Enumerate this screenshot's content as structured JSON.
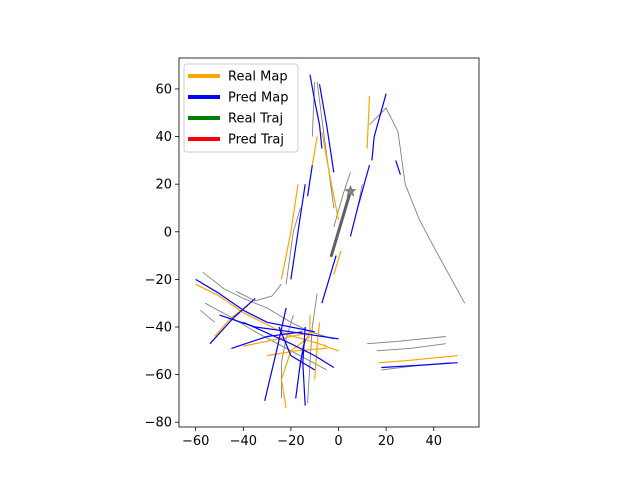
{
  "chart_data": {
    "type": "line",
    "title": "",
    "xlabel": "",
    "ylabel": "",
    "xlim": [
      -67,
      59
    ],
    "ylim": [
      -82,
      73
    ],
    "xticks": [
      -60,
      -40,
      -20,
      0,
      20,
      40
    ],
    "yticks": [
      -80,
      -60,
      -40,
      -20,
      0,
      20,
      40,
      60
    ],
    "xtick_labels": [
      "−60",
      "−40",
      "−20",
      "0",
      "20",
      "40"
    ],
    "ytick_labels": [
      "−80",
      "−60",
      "−40",
      "−20",
      "0",
      "20",
      "40",
      "60"
    ],
    "grid": false,
    "legend": {
      "position": "top-left",
      "entries": [
        {
          "label": "Real Map",
          "color": "#ffa500"
        },
        {
          "label": "Pred Map",
          "color": "#0000ff"
        },
        {
          "label": "Real Traj",
          "color": "#008000"
        },
        {
          "label": "Pred Traj",
          "color": "#ff0000"
        }
      ]
    },
    "series": [
      {
        "color": "#808080",
        "kind": "context",
        "points": [
          [
            13,
            45
          ],
          [
            20,
            52
          ],
          [
            25,
            42
          ],
          [
            28,
            20
          ],
          [
            34,
            5
          ],
          [
            42,
            -10
          ],
          [
            53,
            -30
          ]
        ]
      },
      {
        "color": "#808080",
        "kind": "context",
        "points": [
          [
            12,
            -47
          ],
          [
            25,
            -46
          ],
          [
            45,
            -44
          ]
        ]
      },
      {
        "color": "#808080",
        "kind": "context",
        "points": [
          [
            16,
            -50
          ],
          [
            30,
            -49
          ],
          [
            45,
            -47
          ]
        ]
      },
      {
        "color": "#808080",
        "kind": "context",
        "points": [
          [
            18,
            -58
          ],
          [
            35,
            -56
          ],
          [
            47,
            -55
          ]
        ]
      },
      {
        "color": "#808080",
        "kind": "context",
        "points": [
          [
            -57,
            -17
          ],
          [
            -48,
            -24
          ],
          [
            -40,
            -28
          ],
          [
            -30,
            -32
          ],
          [
            -20,
            -38
          ],
          [
            -12,
            -42
          ],
          [
            -2,
            -45
          ]
        ]
      },
      {
        "color": "#808080",
        "kind": "context",
        "points": [
          [
            -58,
            -33
          ],
          [
            -52,
            -38
          ]
        ]
      },
      {
        "color": "#808080",
        "kind": "context",
        "points": [
          [
            -56,
            -30
          ],
          [
            -45,
            -36
          ],
          [
            -35,
            -42
          ],
          [
            -20,
            -50
          ],
          [
            -5,
            -58
          ]
        ]
      },
      {
        "color": "#808080",
        "kind": "context",
        "points": [
          [
            -43,
            -25
          ],
          [
            -35,
            -29
          ],
          [
            -28,
            -27
          ],
          [
            -24,
            -22
          ]
        ]
      },
      {
        "color": "#808080",
        "kind": "context",
        "points": [
          [
            -19,
            -35
          ],
          [
            -22,
            -45
          ],
          [
            -24,
            -55
          ],
          [
            -24,
            -70
          ]
        ]
      },
      {
        "color": "#808080",
        "kind": "context",
        "points": [
          [
            -9,
            -26
          ],
          [
            -11,
            -40
          ],
          [
            -12,
            -55
          ],
          [
            -13,
            -72
          ]
        ]
      },
      {
        "color": "#808080",
        "kind": "context",
        "points": [
          [
            -22,
            -22
          ],
          [
            -19,
            0
          ],
          [
            -16,
            10
          ]
        ]
      },
      {
        "color": "#808080",
        "kind": "context",
        "points": [
          [
            -9,
            63
          ],
          [
            -6,
            40
          ],
          [
            -4,
            25
          ],
          [
            -2,
            10
          ]
        ]
      },
      {
        "color": "#808080",
        "kind": "context",
        "points": [
          [
            -2,
            2
          ],
          [
            2,
            16
          ],
          [
            5,
            25
          ]
        ]
      },
      {
        "color": "#808080",
        "kind": "context",
        "points": [
          [
            10,
            20
          ],
          [
            8,
            10
          ]
        ]
      },
      {
        "color": "#808080",
        "kind": "context",
        "points": [
          [
            -10,
            63
          ],
          [
            -11,
            40
          ]
        ]
      },
      {
        "color": "#ffa500",
        "kind": "real-map",
        "points": [
          [
            -60,
            -22
          ],
          [
            -50,
            -27
          ],
          [
            -40,
            -34
          ],
          [
            -30,
            -39
          ],
          [
            -22,
            -43
          ],
          [
            -15,
            -45
          ],
          [
            -5,
            -48
          ]
        ]
      },
      {
        "color": "#ffa500",
        "kind": "real-map",
        "points": [
          [
            -52,
            -44
          ],
          [
            -45,
            -36
          ],
          [
            -38,
            -31
          ]
        ]
      },
      {
        "color": "#ffa500",
        "kind": "real-map",
        "points": [
          [
            -40,
            -48
          ],
          [
            -25,
            -45
          ],
          [
            -10,
            -42
          ]
        ]
      },
      {
        "color": "#ffa500",
        "kind": "real-map",
        "points": [
          [
            -30,
            -52
          ],
          [
            -18,
            -50
          ],
          [
            -5,
            -49
          ]
        ]
      },
      {
        "color": "#ffa500",
        "kind": "real-map",
        "points": [
          [
            -22,
            -74
          ],
          [
            -24,
            -62
          ],
          [
            -20,
            -50
          ],
          [
            -12,
            -44
          ]
        ]
      },
      {
        "color": "#ffa500",
        "kind": "real-map",
        "points": [
          [
            -16,
            -57
          ],
          [
            -15,
            -48
          ],
          [
            -12,
            -42
          ],
          [
            -12,
            -35
          ]
        ]
      },
      {
        "color": "#ffa500",
        "kind": "real-map",
        "points": [
          [
            -10,
            -62
          ],
          [
            -9,
            -48
          ],
          [
            -8,
            -38
          ]
        ]
      },
      {
        "color": "#ffa500",
        "kind": "real-map",
        "points": [
          [
            -6,
            -48
          ],
          [
            0,
            -50
          ]
        ]
      },
      {
        "color": "#ffa500",
        "kind": "real-map",
        "points": [
          [
            -24,
            -20
          ],
          [
            -20,
            0
          ],
          [
            -17,
            20
          ]
        ]
      },
      {
        "color": "#ffa500",
        "kind": "real-map",
        "points": [
          [
            -7,
            42
          ],
          [
            -3,
            20
          ],
          [
            0,
            5
          ]
        ]
      },
      {
        "color": "#ffa500",
        "kind": "real-map",
        "points": [
          [
            -9,
            40
          ],
          [
            -11,
            28
          ]
        ]
      },
      {
        "color": "#ffa500",
        "kind": "real-map",
        "points": [
          [
            13,
            57
          ],
          [
            12,
            35
          ]
        ]
      },
      {
        "color": "#ffa500",
        "kind": "real-map",
        "points": [
          [
            1,
            -8
          ],
          [
            -2,
            -18
          ]
        ]
      },
      {
        "color": "#ffa500",
        "kind": "real-map",
        "points": [
          [
            17,
            -55
          ],
          [
            30,
            -54
          ],
          [
            50,
            -52
          ]
        ]
      },
      {
        "color": "#0000ff",
        "kind": "pred-map",
        "points": [
          [
            -12,
            66
          ],
          [
            -10,
            55
          ],
          [
            -8,
            45
          ],
          [
            -7,
            35
          ]
        ]
      },
      {
        "color": "#0000ff",
        "kind": "pred-map",
        "points": [
          [
            -8,
            62
          ],
          [
            -5,
            45
          ],
          [
            -2,
            25
          ]
        ]
      },
      {
        "color": "#0000ff",
        "kind": "pred-map",
        "points": [
          [
            -14,
            20
          ],
          [
            -17,
            0
          ],
          [
            -20,
            -20
          ]
        ]
      },
      {
        "color": "#0000ff",
        "kind": "pred-map",
        "points": [
          [
            -11,
            28
          ],
          [
            -13,
            15
          ]
        ]
      },
      {
        "color": "#0000ff",
        "kind": "pred-map",
        "points": [
          [
            20,
            58
          ],
          [
            15,
            40
          ],
          [
            14,
            30
          ]
        ]
      },
      {
        "color": "#0000ff",
        "kind": "pred-map",
        "points": [
          [
            13,
            28
          ],
          [
            8,
            10
          ],
          [
            5,
            -2
          ]
        ]
      },
      {
        "color": "#0000ff",
        "kind": "pred-map",
        "points": [
          [
            24,
            30
          ],
          [
            26,
            24
          ]
        ]
      },
      {
        "color": "#0000ff",
        "kind": "pred-map",
        "points": [
          [
            -1,
            -10
          ],
          [
            -4,
            -20
          ],
          [
            -7,
            -30
          ]
        ]
      },
      {
        "color": "#0000ff",
        "kind": "pred-map",
        "points": [
          [
            -60,
            -20
          ],
          [
            -50,
            -26
          ],
          [
            -40,
            -33
          ],
          [
            -30,
            -38
          ],
          [
            -20,
            -40
          ],
          [
            -10,
            -42
          ]
        ]
      },
      {
        "color": "#0000ff",
        "kind": "pred-map",
        "points": [
          [
            -54,
            -47
          ],
          [
            -44,
            -36
          ],
          [
            -35,
            -28
          ]
        ]
      },
      {
        "color": "#0000ff",
        "kind": "pred-map",
        "points": [
          [
            -50,
            -35
          ],
          [
            -35,
            -40
          ],
          [
            -20,
            -42
          ],
          [
            0,
            -45
          ]
        ]
      },
      {
        "color": "#0000ff",
        "kind": "pred-map",
        "points": [
          [
            -45,
            -49
          ],
          [
            -30,
            -44
          ],
          [
            -15,
            -42
          ]
        ]
      },
      {
        "color": "#0000ff",
        "kind": "pred-map",
        "points": [
          [
            -40,
            -38
          ],
          [
            -20,
            -47
          ],
          [
            -10,
            -52
          ],
          [
            -2,
            -57
          ]
        ]
      },
      {
        "color": "#0000ff",
        "kind": "pred-map",
        "points": [
          [
            -31,
            -71
          ],
          [
            -26,
            -50
          ],
          [
            -22,
            -32
          ]
        ]
      },
      {
        "color": "#0000ff",
        "kind": "pred-map",
        "points": [
          [
            -14,
            -73
          ],
          [
            -15,
            -55
          ],
          [
            -14,
            -40
          ]
        ]
      },
      {
        "color": "#0000ff",
        "kind": "pred-map",
        "points": [
          [
            -18,
            -70
          ],
          [
            -16,
            -55
          ],
          [
            -14,
            -45
          ]
        ]
      },
      {
        "color": "#0000ff",
        "kind": "pred-map",
        "points": [
          [
            -25,
            -40
          ],
          [
            -20,
            -52
          ],
          [
            -10,
            -58
          ]
        ]
      },
      {
        "color": "#0000ff",
        "kind": "pred-map",
        "points": [
          [
            18,
            -57
          ],
          [
            35,
            -56
          ],
          [
            50,
            -55
          ]
        ]
      }
    ],
    "trajectory": {
      "color": "#606060",
      "start": [
        -3,
        -10
      ],
      "end": [
        5,
        17
      ]
    },
    "ego_marker": {
      "shape": "star",
      "color": "#808080",
      "position": [
        5,
        17
      ]
    }
  }
}
